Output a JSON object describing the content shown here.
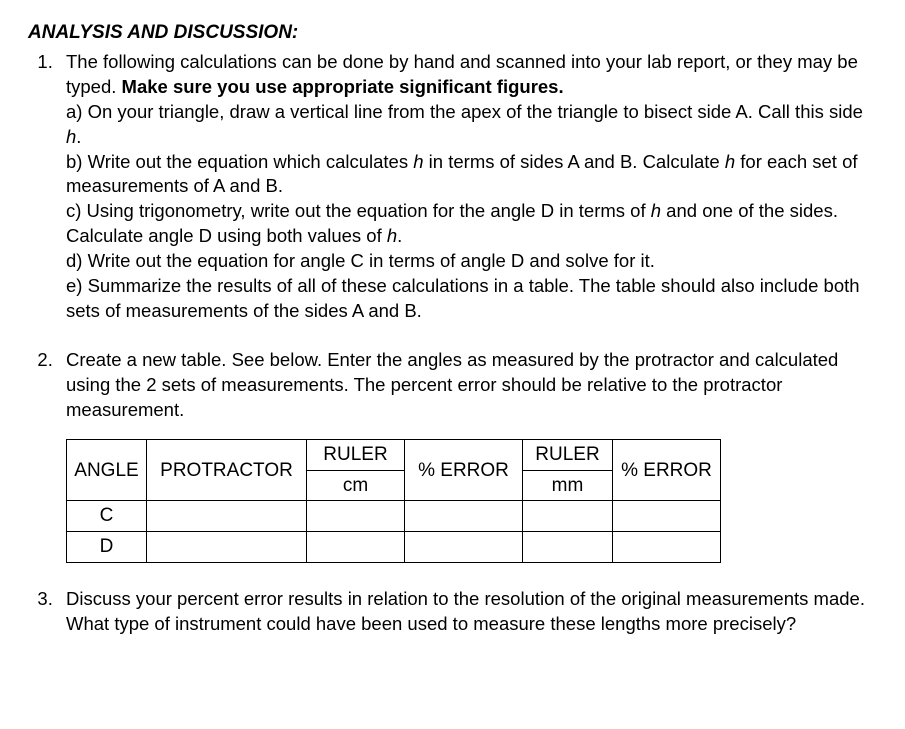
{
  "heading": "ANALYSIS AND DISCUSSION:",
  "item1": {
    "intro_a": "The following calculations can be done by hand and scanned into your lab report, or they may be typed.  ",
    "intro_b": "Make sure you use appropriate significant figures.",
    "a1": "a) On your triangle, draw a vertical line from the apex of the triangle to bisect side A.  Call this side ",
    "a2": "h",
    "a3": ".",
    "b1": "b) Write out the equation which calculates ",
    "b2": "h",
    "b3": " in terms of sides A and B.  Calculate ",
    "b4": "h",
    "b5": " for each set of measurements of A and B.",
    "c1": "c) Using trigonometry, write out the equation for the angle D in terms of ",
    "c2": "h",
    "c3": " and one of the sides.  Calculate angle D using both values of ",
    "c4": "h",
    "c5": ".",
    "d": "d) Write out the equation for angle C in terms of angle D and solve for it.",
    "e": "e) Summarize the results of all of these calculations in a table.  The table should also include both sets of measurements of the sides A and B."
  },
  "item2": {
    "text": "Create a new table.  See below.  Enter the angles as measured by the protractor and calculated using the 2 sets of measurements.  The percent error should be relative to the protractor measurement.",
    "table": {
      "headers": {
        "angle": "ANGLE",
        "protractor": "PROTRACTOR",
        "ruler_cm": "RULER",
        "ruler_cm_unit": "cm",
        "error1": "% ERROR",
        "ruler_mm": "RULER",
        "ruler_mm_unit": "mm",
        "error2": "% ERROR"
      },
      "rows": [
        {
          "angle": "C"
        },
        {
          "angle": "D"
        }
      ]
    }
  },
  "item3": {
    "text": "Discuss your percent error results in relation to the resolution of the original measurements made.  What type of instrument could have been used to measure these lengths more precisely?"
  }
}
